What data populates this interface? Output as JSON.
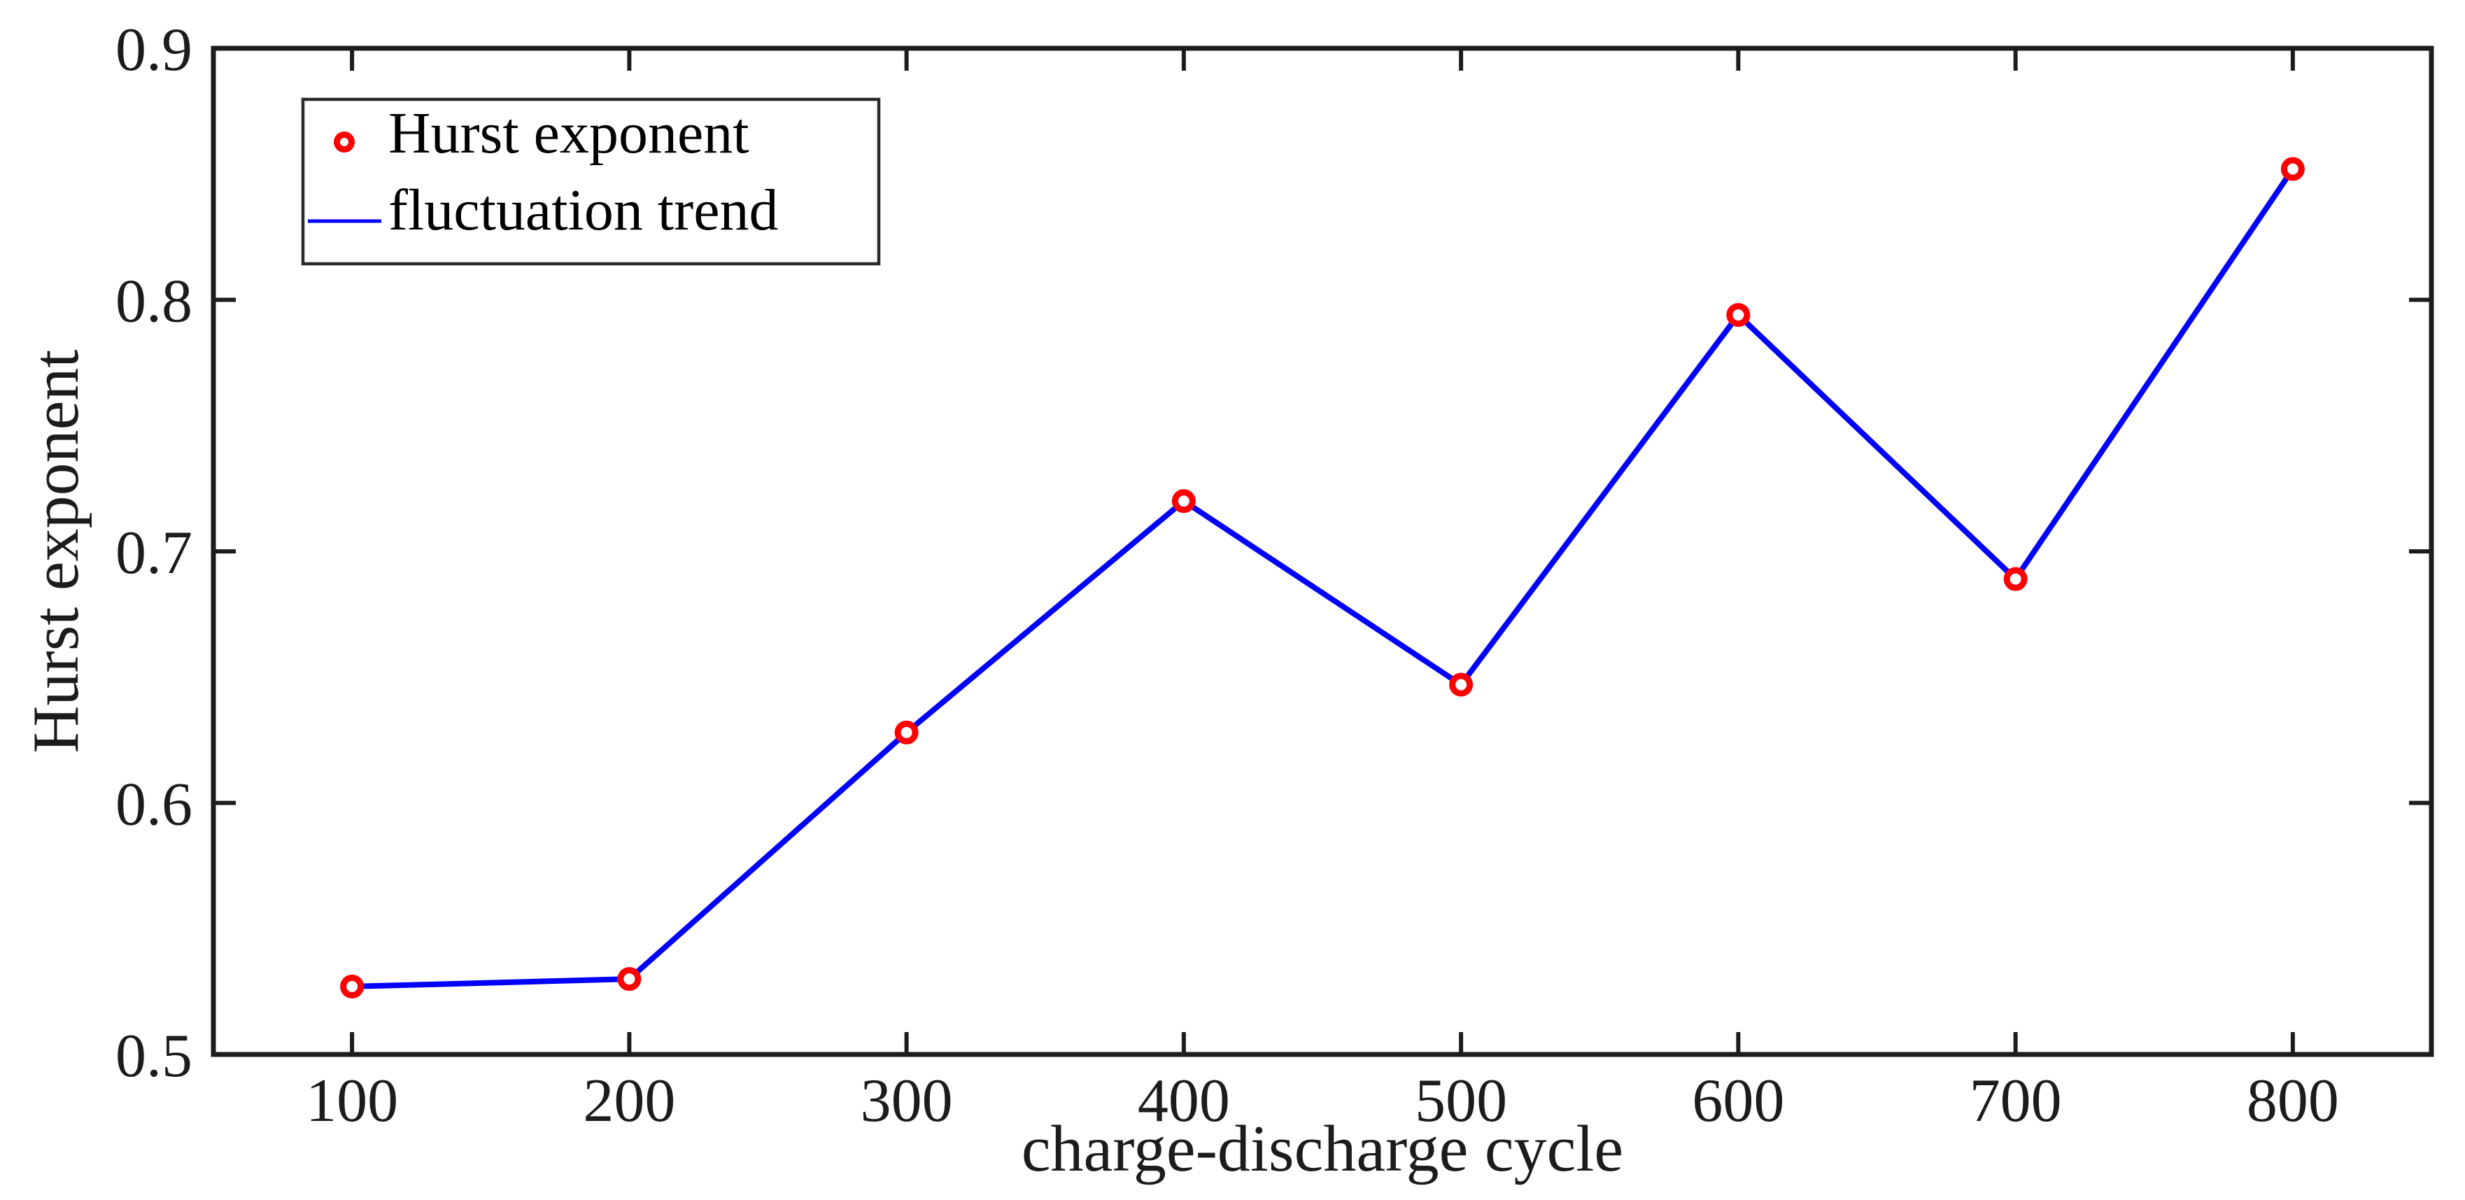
{
  "figure": {
    "background": "#ffffff",
    "axis_color": "#1c1c1c"
  },
  "chart_data": {
    "type": "line",
    "title": "",
    "x": [
      100,
      200,
      300,
      400,
      500,
      600,
      700,
      800
    ],
    "y": [
      0.527,
      0.53,
      0.628,
      0.72,
      0.647,
      0.794,
      0.689,
      0.852
    ],
    "xlabel": "charge-discharge cycle",
    "ylabel": "Hurst exponent",
    "xlim": [
      50,
      850
    ],
    "ylim": [
      0.5,
      0.9
    ],
    "xticks": [
      100,
      200,
      300,
      400,
      500,
      600,
      700,
      800
    ],
    "xtick_labels": [
      "100",
      "200",
      "300",
      "400",
      "500",
      "600",
      "700",
      "800"
    ],
    "yticks": [
      0.5,
      0.6,
      0.7,
      0.8,
      0.9
    ],
    "ytick_labels": [
      "0.5",
      "0.6",
      "0.7",
      "0.8",
      "0.9"
    ],
    "grid": false,
    "box": true,
    "tick_direction": "in",
    "legend": {
      "position": "top-left",
      "border": true,
      "entries": [
        {
          "label": "Hurst exponent",
          "symbol": "circle-marker",
          "color": "#ff0000"
        },
        {
          "label": "fluctuation trend",
          "symbol": "line",
          "color": "#0000ff"
        }
      ]
    },
    "series_style": {
      "line_color": "#0000ff",
      "line_width": 8,
      "marker": "o",
      "marker_color": "#ff0000",
      "marker_fill": "#ffffff"
    }
  }
}
